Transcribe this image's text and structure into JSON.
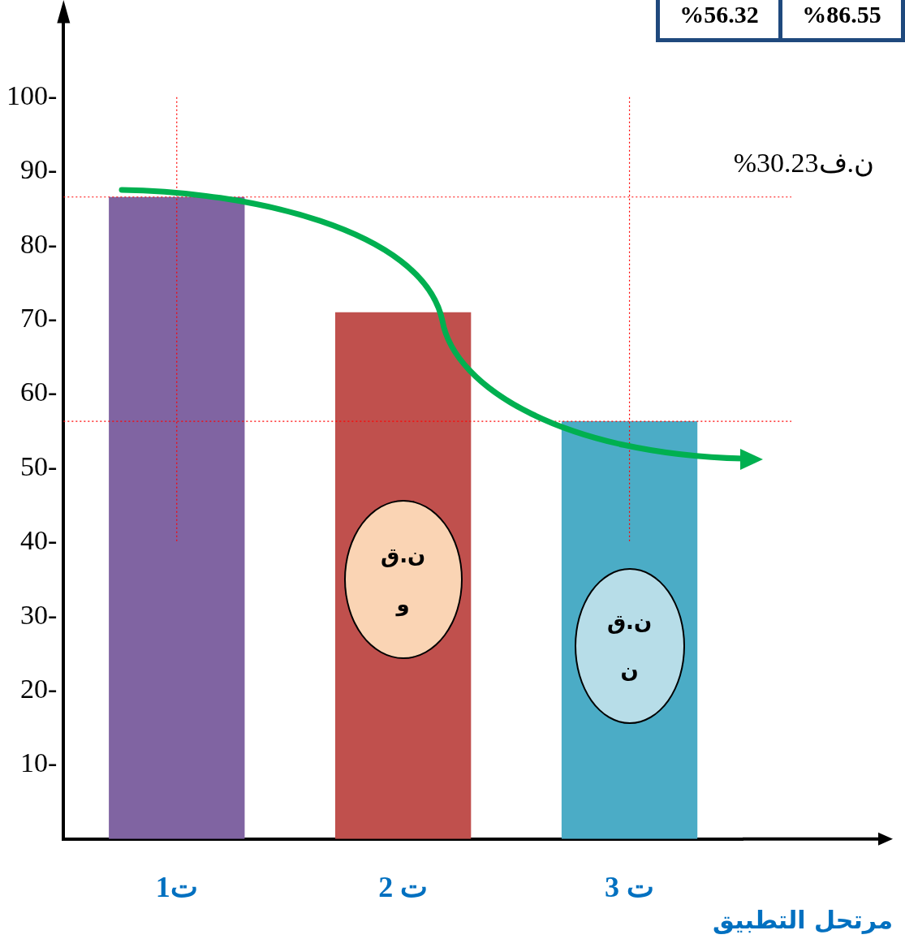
{
  "chart_data": {
    "type": "bar",
    "xlabel": "مرتحل التطبيق",
    "categories": [
      "ت1",
      "ت 2",
      "ت 3"
    ],
    "values": [
      86.55,
      71,
      56.32
    ],
    "colors": [
      "#8064a2",
      "#c0504d",
      "#4bacc6"
    ],
    "ylim": [
      0,
      110
    ],
    "yticks": [
      {
        "value": 10,
        "label": "10-"
      },
      {
        "value": 20,
        "label": "20-"
      },
      {
        "value": 30,
        "label": "30-"
      },
      {
        "value": 40,
        "label": "40-"
      },
      {
        "value": 50,
        "label": "50-"
      },
      {
        "value": 60,
        "label": "60-"
      },
      {
        "value": 70,
        "label": "70-"
      },
      {
        "value": 80,
        "label": "80-"
      },
      {
        "value": 90,
        "label": "90-"
      },
      {
        "value": 100,
        "label": "100-"
      }
    ],
    "grid": false,
    "legend": false,
    "ref_lines": [
      {
        "axis": "y",
        "value": 86.55,
        "color": "#ff0000",
        "line_style": "dotted"
      },
      {
        "axis": "y",
        "value": 56.32,
        "color": "#ff0000",
        "line_style": "dotted"
      },
      {
        "axis": "x",
        "value": "ت1",
        "color": "#ff0000",
        "line_style": "dotted"
      },
      {
        "axis": "x",
        "value": "ت 3",
        "color": "#ff0000",
        "line_style": "dotted"
      }
    ],
    "annotations": [
      "%56.32",
      "%86.55",
      "ن.ف30.23%",
      "ن.ق\nو",
      "ن.ق\nن"
    ]
  }
}
